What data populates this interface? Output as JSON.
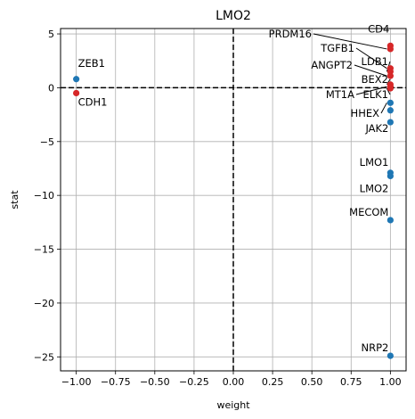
{
  "chart_data": {
    "type": "scatter",
    "title": "LMO2",
    "xlabel": "weight",
    "ylabel": "stat",
    "xlim": [
      -1.1,
      1.1
    ],
    "ylim": [
      -26.3,
      5.5
    ],
    "x_ticks": [
      -1.0,
      -0.75,
      -0.5,
      -0.25,
      0.0,
      0.25,
      0.5,
      0.75,
      1.0
    ],
    "x_tick_labels": [
      "−1.00",
      "−0.75",
      "−0.50",
      "−0.25",
      "0.00",
      "0.25",
      "0.50",
      "0.75",
      "1.00"
    ],
    "y_ticks": [
      5,
      0,
      -5,
      -10,
      -15,
      -20,
      -25
    ],
    "y_tick_labels": [
      "5",
      "0",
      "−5",
      "−10",
      "−15",
      "−20",
      "−25"
    ],
    "grid": true,
    "reference_lines": {
      "x": 0,
      "y": 0
    },
    "colors": {
      "positive": "#d62728",
      "negative": "#1f77b4"
    },
    "points": [
      {
        "label": "ZEB1",
        "x": -1.0,
        "y": 0.8,
        "color": "negative"
      },
      {
        "label": "CDH1",
        "x": -1.0,
        "y": -0.5,
        "color": "positive"
      },
      {
        "label": "CD4",
        "x": 1.0,
        "y": 3.9,
        "color": "positive"
      },
      {
        "label": "PRDM16",
        "x": 1.0,
        "y": 3.6,
        "color": "positive"
      },
      {
        "label": "TGFB1",
        "x": 1.0,
        "y": 1.8,
        "color": "positive"
      },
      {
        "label": "LDB1",
        "x": 1.0,
        "y": 1.5,
        "color": "positive"
      },
      {
        "label": "ANGPT2",
        "x": 1.0,
        "y": 1.1,
        "color": "positive"
      },
      {
        "label": "BEX2",
        "x": 1.0,
        "y": 0.3,
        "color": "positive"
      },
      {
        "label": "MT1A",
        "x": 1.0,
        "y": 0.1,
        "color": "positive"
      },
      {
        "label": "ELK1",
        "x": 1.0,
        "y": -0.05,
        "color": "positive"
      },
      {
        "label": "HHEX",
        "x": 1.0,
        "y": -1.4,
        "color": "negative"
      },
      {
        "label": "",
        "x": 1.0,
        "y": -2.1,
        "color": "negative"
      },
      {
        "label": "JAK2",
        "x": 1.0,
        "y": -3.2,
        "color": "negative"
      },
      {
        "label": "LMO1",
        "x": 1.0,
        "y": -7.9,
        "color": "negative"
      },
      {
        "label": "LMO2",
        "x": 1.0,
        "y": -8.2,
        "color": "negative"
      },
      {
        "label": "MECOM",
        "x": 1.0,
        "y": -12.3,
        "color": "negative"
      },
      {
        "label": "NRP2",
        "x": 1.0,
        "y": -24.9,
        "color": "negative"
      }
    ]
  }
}
